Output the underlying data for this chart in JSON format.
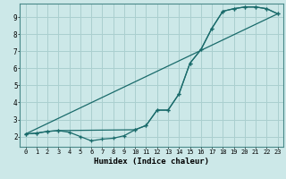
{
  "xlabel": "Humidex (Indice chaleur)",
  "background_color": "#cce8e8",
  "grid_color": "#aacfcf",
  "line_color": "#1a6b6b",
  "xlim": [
    -0.5,
    23.5
  ],
  "ylim": [
    1.4,
    9.8
  ],
  "yticks": [
    2,
    3,
    4,
    5,
    6,
    7,
    8,
    9
  ],
  "xticks": [
    0,
    1,
    2,
    3,
    4,
    5,
    6,
    7,
    8,
    9,
    10,
    11,
    12,
    13,
    14,
    15,
    16,
    17,
    18,
    19,
    20,
    21,
    22,
    23
  ],
  "line1_x": [
    0,
    1,
    2,
    3,
    4,
    5,
    6,
    7,
    8,
    9,
    10,
    11,
    12,
    13,
    14,
    15,
    16,
    17,
    18,
    19,
    20,
    21,
    22,
    23
  ],
  "line1_y": [
    2.15,
    2.2,
    2.3,
    2.35,
    2.25,
    2.0,
    1.75,
    1.85,
    1.9,
    2.05,
    2.4,
    2.65,
    3.55,
    3.55,
    4.5,
    6.3,
    7.1,
    8.35,
    9.35,
    9.5,
    9.6,
    9.6,
    9.5,
    9.2
  ],
  "line2_x": [
    0,
    23
  ],
  "line2_y": [
    2.15,
    9.2
  ],
  "line3_x": [
    0,
    1,
    2,
    3,
    10,
    11,
    12,
    13,
    14,
    15,
    16,
    17,
    18,
    19,
    20,
    21,
    22,
    23
  ],
  "line3_y": [
    2.15,
    2.2,
    2.3,
    2.35,
    2.4,
    2.65,
    3.55,
    3.55,
    4.5,
    6.3,
    7.1,
    8.35,
    9.35,
    9.5,
    9.6,
    9.6,
    9.5,
    9.2
  ]
}
